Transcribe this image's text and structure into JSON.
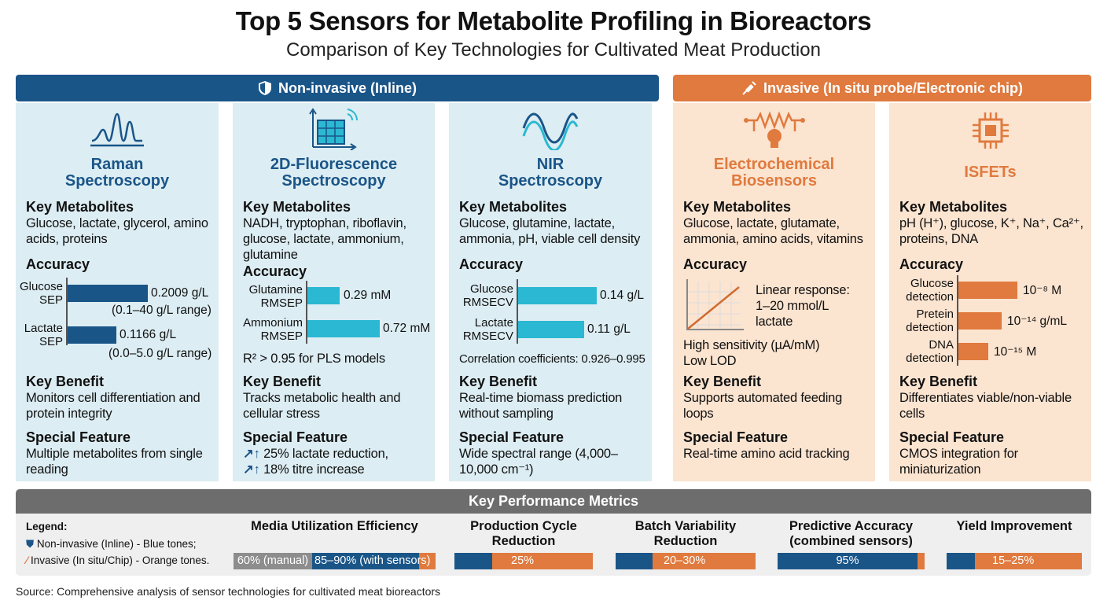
{
  "title": "Top 5 Sensors for Metabolite Profiling in Bioreactors",
  "subtitle": "Comparison of Key Technologies for Cultivated Meat Production",
  "colors": {
    "blue": "#1a5588",
    "cyan": "#2bb8d2",
    "orange": "#e07a3e",
    "card_blue": "#dcedf3",
    "card_orange": "#fbe4d0",
    "gray": "#6d6d6d"
  },
  "groups": [
    {
      "label": "Non-invasive (Inline)",
      "icon": "shield-icon"
    },
    {
      "label": "Invasive (In situ probe/Electronic chip)",
      "icon": "syringe-icon"
    }
  ],
  "headings": {
    "metabolites": "Key Metabolites",
    "accuracy": "Accuracy",
    "benefit": "Key Benefit",
    "feature": "Special Feature"
  },
  "cards": [
    {
      "title": "Raman\nSpectroscopy",
      "icon": "spectrum-peaks-icon",
      "metabolites": "Glucose, lactate, glycerol, amino acids, proteins",
      "accuracy": {
        "bars": [
          {
            "label": "Glucose\nSEP",
            "value": "0.2009 g/L",
            "note": "(0.1–40 g/L range)"
          },
          {
            "label": "Lactate\nSEP",
            "value": "0.1166 g/L",
            "note": "(0.0–5.0 g/L range)"
          }
        ]
      },
      "benefit": "Monitors cell differentiation and protein integrity",
      "feature": "Multiple metabolites from single reading"
    },
    {
      "title": "2D-Fluorescence\nSpectroscopy",
      "icon": "fluorescence-grid-icon",
      "metabolites": "NADH, tryptophan, riboflavin, glucose, lactate, ammonium, glutamine",
      "accuracy": {
        "bars": [
          {
            "label": "Glutamine\nRMSEP",
            "value": "0.29 mM"
          },
          {
            "label": "Ammonium\nRMSEP",
            "value": "0.72 mM"
          }
        ],
        "note": "R² > 0.95 for PLS models"
      },
      "benefit": "Tracks metabolic health and cellular stress",
      "feature": [
        "25% lactate reduction,",
        "18% titre increase"
      ]
    },
    {
      "title": "NIR\nSpectroscopy",
      "icon": "wave-icon",
      "metabolites": "Glucose, glutamine, lactate, ammonia, pH, viable cell density",
      "accuracy": {
        "bars": [
          {
            "label": "Glucose\nRMSECV",
            "value": "0.14 g/L"
          },
          {
            "label": "Lactate\nRMSECV",
            "value": "0.11 g/L"
          }
        ],
        "note": "Correlation coefficients: 0.926–0.995"
      },
      "benefit": "Real-time biomass prediction without sampling",
      "feature": "Wide spectral range (4,000–10,000 cm⁻¹)"
    },
    {
      "title": "Electrochemical\nBiosensors",
      "icon": "circuit-bulb-icon",
      "metabolites": "Glucose, lactate, glutamate, ammonia, amino acids, vitamins",
      "accuracy": {
        "response": "Linear response:\n1–20 mmol/L lactate",
        "note": "High sensitivity (µA/mM)\nLow LOD"
      },
      "benefit": "Supports automated feeding loops",
      "feature": "Real-time amino acid tracking"
    },
    {
      "title": "ISFETs",
      "icon": "chip-icon",
      "metabolites": "pH (H⁺), glucose, K⁺, Na⁺, Ca²⁺, proteins, DNA",
      "accuracy": {
        "bars": [
          {
            "label": "Glucose\ndetection",
            "value": "10⁻⁸ M"
          },
          {
            "label": "Pretein\ndetection",
            "value": "10⁻¹⁴ g/mL"
          },
          {
            "label": "DNA\ndetection",
            "value": "10⁻¹⁵ M"
          }
        ]
      },
      "benefit": "Differentiates viable/non-viable cells",
      "feature": "CMOS integration for miniaturization"
    }
  ],
  "metrics": {
    "title": "Key Performance Metrics",
    "legend": {
      "title": "Legend:",
      "items": [
        "Non-invasive (Inline) - Blue tones;",
        "Invasive (In situ/Chip) - Orange tones."
      ]
    },
    "items": [
      {
        "title": "Media Utilization Efficiency",
        "segments": [
          "60% (manual)",
          "85–90% (with sensors)"
        ]
      },
      {
        "title": "Production Cycle\nReduction",
        "value": "25%"
      },
      {
        "title": "Batch Variability\nReduction",
        "value": "20–30%"
      },
      {
        "title": "Predictive Accuracy\n(combined sensors)",
        "value": "95%"
      },
      {
        "title": "Yield Improvement",
        "value": "15–25%"
      }
    ]
  },
  "source": "Source: Comprehensive analysis of sensor technologies for cultivated meat bioreactors"
}
